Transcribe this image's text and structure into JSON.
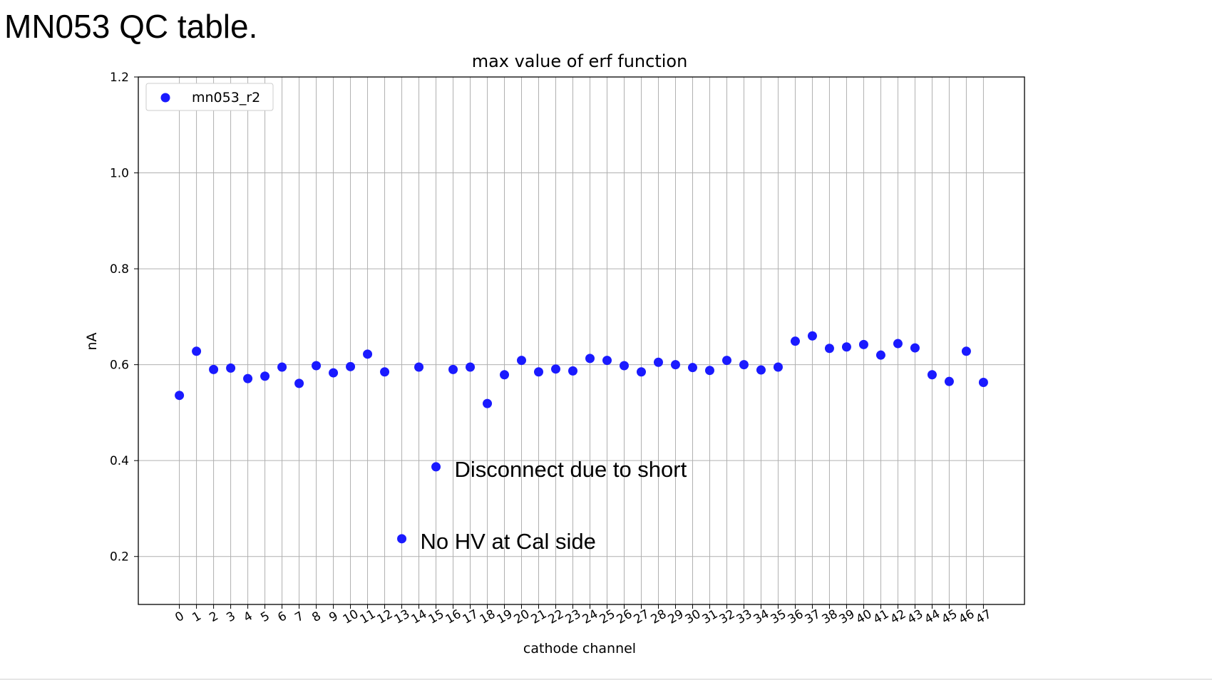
{
  "slide": {
    "title": "MN053 QC table."
  },
  "chart_data": {
    "type": "scatter",
    "title": "max value of erf function",
    "xlabel": "cathode channel",
    "ylabel": "nA",
    "ylim": [
      0.1,
      1.2
    ],
    "xlim": [
      -2.4,
      49.4
    ],
    "yticks": [
      0.2,
      0.4,
      0.6,
      0.8,
      1.0,
      1.2
    ],
    "ytick_labels": [
      "0.2",
      "0.4",
      "0.6",
      "0.8",
      "1.0",
      "1.2"
    ],
    "xticks": [
      0,
      1,
      2,
      3,
      4,
      5,
      6,
      7,
      8,
      9,
      10,
      11,
      12,
      13,
      14,
      15,
      16,
      17,
      18,
      19,
      20,
      21,
      22,
      23,
      24,
      25,
      26,
      27,
      28,
      29,
      30,
      31,
      32,
      33,
      34,
      35,
      36,
      37,
      38,
      39,
      40,
      41,
      42,
      43,
      44,
      45,
      46,
      47
    ],
    "grid": true,
    "legend_position": "top-left",
    "marker_color": "#1a1aff",
    "series": [
      {
        "name": "mn053_r2",
        "x": [
          0,
          1,
          2,
          3,
          4,
          5,
          6,
          7,
          8,
          9,
          10,
          11,
          12,
          13,
          14,
          15,
          16,
          17,
          18,
          19,
          20,
          21,
          22,
          23,
          24,
          25,
          26,
          27,
          28,
          29,
          30,
          31,
          32,
          33,
          34,
          35,
          36,
          37,
          38,
          39,
          40,
          41,
          42,
          43,
          44,
          45,
          46,
          47
        ],
        "y": [
          0.536,
          0.628,
          0.59,
          0.593,
          0.571,
          0.576,
          0.595,
          0.561,
          0.598,
          0.583,
          0.596,
          0.622,
          0.585,
          0.237,
          0.595,
          0.387,
          0.59,
          0.595,
          0.519,
          0.579,
          0.609,
          0.585,
          0.591,
          0.587,
          0.613,
          0.609,
          0.598,
          0.585,
          0.605,
          0.6,
          0.594,
          0.588,
          0.609,
          0.6,
          0.589,
          0.595,
          0.649,
          0.66,
          0.634,
          0.637,
          0.642,
          0.62,
          0.644,
          0.635,
          0.579,
          0.565,
          0.628,
          0.563
        ]
      }
    ],
    "annotations": [
      {
        "text": "Disconnect due to short",
        "channel": 15,
        "value": 0.387
      },
      {
        "text": "No HV at Cal side",
        "channel": 13,
        "value": 0.237
      }
    ]
  }
}
